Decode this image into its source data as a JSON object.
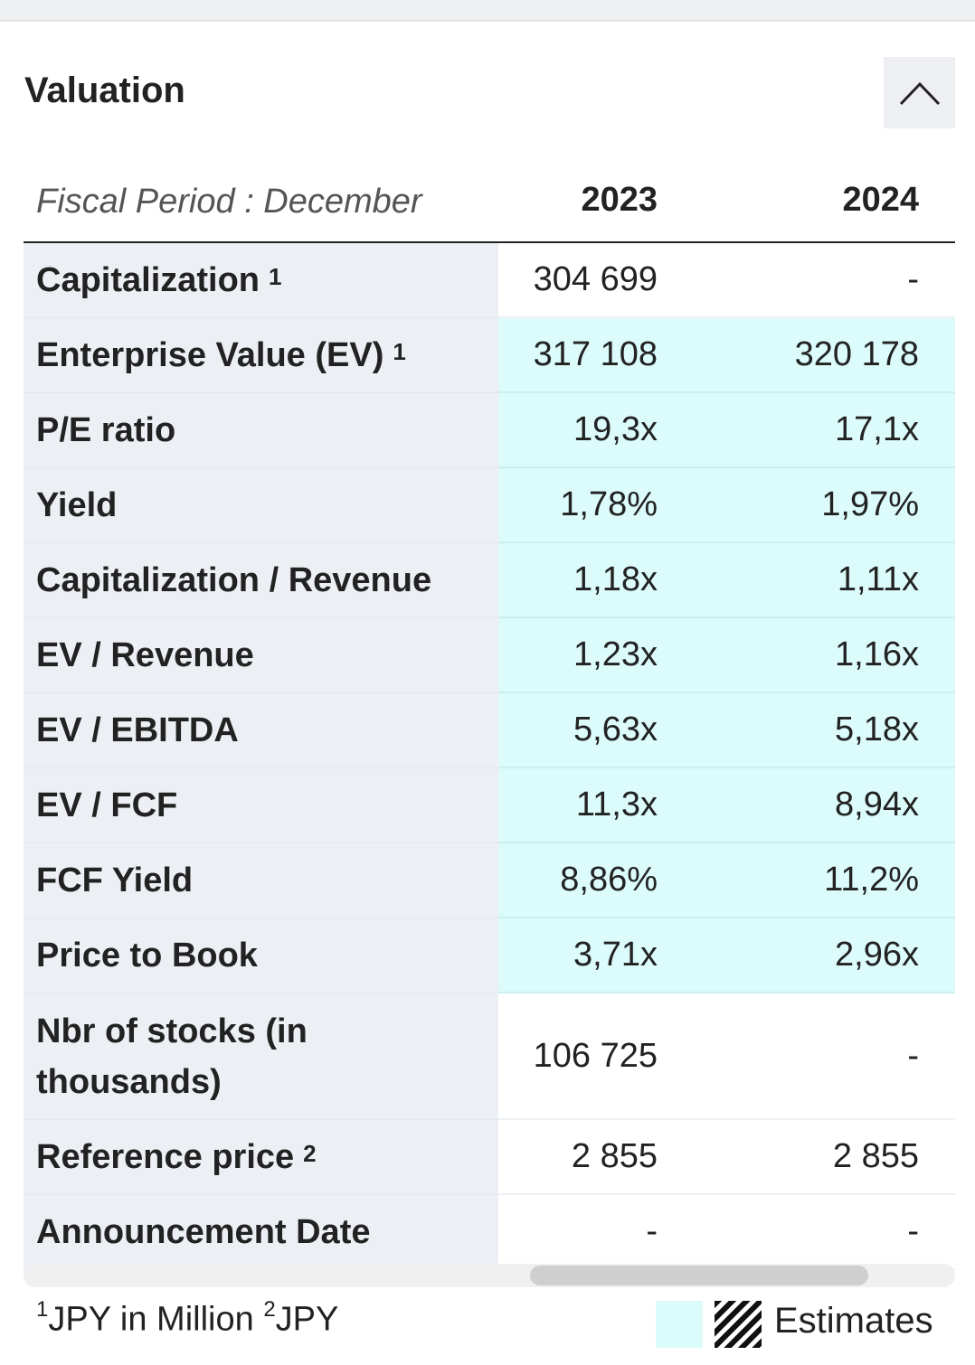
{
  "section": {
    "title": "Valuation"
  },
  "header": {
    "period_label": "Fiscal Period : December",
    "years": [
      "2023",
      "2024"
    ]
  },
  "rows": [
    {
      "label": "Capitalization",
      "sup": "1",
      "v2023": "304 699",
      "v2024": "-",
      "estimate": false
    },
    {
      "label": "Enterprise Value (EV)",
      "sup": "1",
      "v2023": "317 108",
      "v2024": "320 178",
      "estimate": true
    },
    {
      "label": "P/E ratio",
      "sup": "",
      "v2023": "19,3x",
      "v2024": "17,1x",
      "estimate": true
    },
    {
      "label": "Yield",
      "sup": "",
      "v2023": "1,78%",
      "v2024": "1,97%",
      "estimate": true
    },
    {
      "label": "Capitalization / Revenue",
      "sup": "",
      "v2023": "1,18x",
      "v2024": "1,11x",
      "estimate": true
    },
    {
      "label": "EV / Revenue",
      "sup": "",
      "v2023": "1,23x",
      "v2024": "1,16x",
      "estimate": true
    },
    {
      "label": "EV / EBITDA",
      "sup": "",
      "v2023": "5,63x",
      "v2024": "5,18x",
      "estimate": true
    },
    {
      "label": "EV / FCF",
      "sup": "",
      "v2023": "11,3x",
      "v2024": "8,94x",
      "estimate": true
    },
    {
      "label": "FCF Yield",
      "sup": "",
      "v2023": "8,86%",
      "v2024": "11,2%",
      "estimate": true
    },
    {
      "label": "Price to Book",
      "sup": "",
      "v2023": "3,71x",
      "v2024": "2,96x",
      "estimate": true
    },
    {
      "label": "Nbr of stocks (in thousands)",
      "sup": "",
      "v2023": "106 725",
      "v2024": "-",
      "estimate": false
    },
    {
      "label": "Reference price",
      "sup": "2",
      "v2023": "2 855",
      "v2024": "2 855",
      "estimate": false
    },
    {
      "label": "Announcement Date",
      "sup": "",
      "v2023": "-",
      "v2024": "-",
      "estimate": false
    }
  ],
  "footer": {
    "note1_sup": "1",
    "note1_text": "JPY in Million",
    "note2_sup": "2",
    "note2_text": "JPY",
    "legend_label": "Estimates"
  },
  "colors": {
    "estimate_bg": "#dcfbfb",
    "label_bg": "#eceff3"
  },
  "icons": {
    "collapse": "chevron-up-icon"
  }
}
